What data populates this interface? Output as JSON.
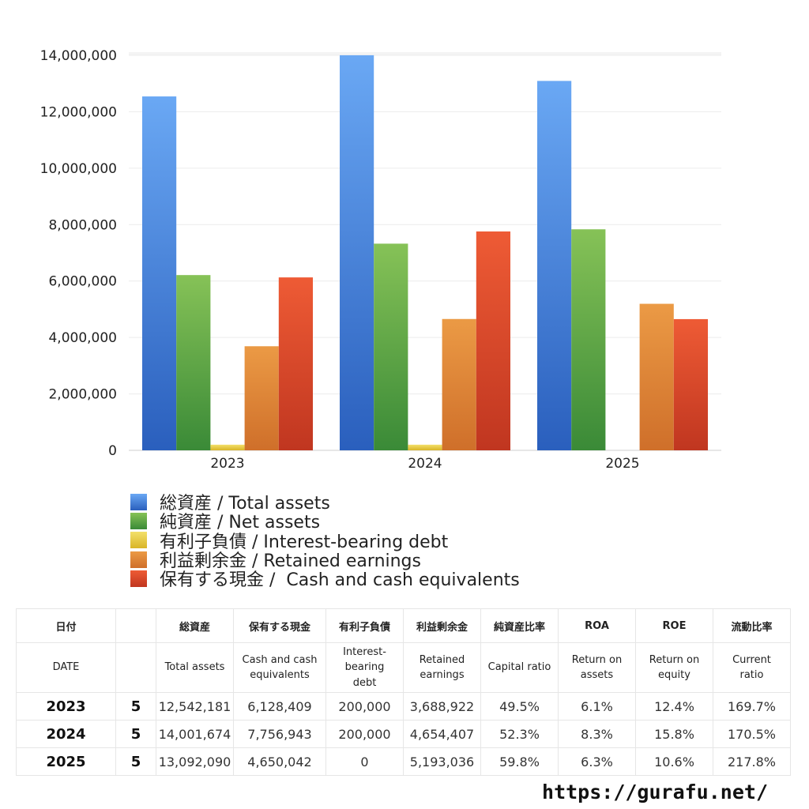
{
  "chart_data": {
    "type": "bar",
    "categories": [
      "2023",
      "2024",
      "2025"
    ],
    "ylim": [
      0,
      14000000
    ],
    "yticks": [
      0,
      2000000,
      4000000,
      6000000,
      8000000,
      10000000,
      12000000,
      14000000
    ],
    "ytick_labels": [
      "0",
      "2,000,000",
      "4,000,000",
      "6,000,000",
      "8,000,000",
      "10,000,000",
      "12,000,000",
      "14,000,000"
    ],
    "grid": true,
    "legend_position": "bottom",
    "series": [
      {
        "name": "総資産 / Total assets",
        "values": [
          12542181,
          14001674,
          13092090
        ],
        "color_top": "#6aa8f4",
        "color_bottom": "#2a5fbd",
        "legend_color": "#4a8be0"
      },
      {
        "name": "純資産 / Net assets",
        "values": [
          6211200,
          7324400,
          7833300
        ],
        "color_top": "#86c257",
        "color_bottom": "#3a8a37",
        "legend_color": "#5aa345"
      },
      {
        "name": "有利子負債 / Interest-bearing debt",
        "values": [
          200000,
          200000,
          0
        ],
        "color_top": "#f3e06a",
        "color_bottom": "#d9b527",
        "legend_color": "#e9cd45"
      },
      {
        "name": "利益剰余金 / Retained earnings",
        "values": [
          3688922,
          4654407,
          5193036
        ],
        "color_top": "#eb9a45",
        "color_bottom": "#cf6f2a",
        "legend_color": "#e08a3a"
      },
      {
        "name": "保有する現金 /  Cash and cash equivalents",
        "values": [
          6128409,
          7756943,
          4650042
        ],
        "color_top": "#ee5b35",
        "color_bottom": "#c03620",
        "legend_color": "#dc4628"
      }
    ]
  },
  "table": {
    "header_jp": [
      "日付",
      "",
      "総資産",
      "保有する現金",
      "有利子負債",
      "利益剰余金",
      "純資産比率",
      "ROA",
      "ROE",
      "流動比率"
    ],
    "header_en": [
      "DATE",
      "",
      "Total assets",
      "Cash and cash\nequivalents",
      "Interest-\nbearing\ndebt",
      "Retained\nearnings",
      "Capital ratio",
      "Return on\nassets",
      "Return on\nequity",
      "Current\nratio"
    ],
    "rows": [
      [
        "2023",
        "5",
        "12,542,181",
        "6,128,409",
        "200,000",
        "3,688,922",
        "49.5%",
        "6.1%",
        "12.4%",
        "169.7%"
      ],
      [
        "2024",
        "5",
        "14,001,674",
        "7,756,943",
        "200,000",
        "4,654,407",
        "52.3%",
        "8.3%",
        "15.8%",
        "170.5%"
      ],
      [
        "2025",
        "5",
        "13,092,090",
        "4,650,042",
        "0",
        "5,193,036",
        "59.8%",
        "6.3%",
        "10.6%",
        "217.8%"
      ]
    ]
  },
  "footer": {
    "url": "https://gurafu.net/"
  }
}
